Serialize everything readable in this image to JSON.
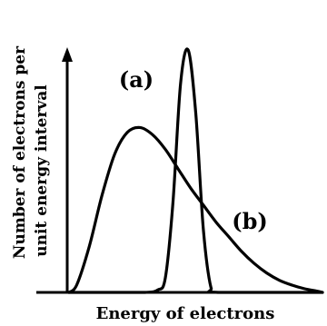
{
  "chart_data": {
    "type": "line",
    "title": "",
    "xlabel": "Energy of electrons",
    "ylabel_line1": "Number of electrons per",
    "ylabel_line2": "unit energy interval",
    "xlim": [
      0,
      1
    ],
    "ylim": [
      0,
      1
    ],
    "grid": false,
    "legend": "none",
    "series": [
      {
        "name": "(a)",
        "x": [
          0.0,
          0.1,
          0.2,
          0.3,
          0.35,
          0.38,
          0.41,
          0.44,
          0.47,
          0.5,
          0.53,
          0.56,
          0.59,
          1.0
        ],
        "y": [
          0.0,
          0.0,
          0.0,
          0.0,
          0.01,
          0.06,
          0.37,
          0.86,
          1.0,
          0.74,
          0.26,
          0.02,
          0.0,
          0.0
        ]
      },
      {
        "name": "(b)",
        "x": [
          0.0,
          0.03,
          0.08,
          0.13,
          0.18,
          0.23,
          0.28,
          0.33,
          0.38,
          0.43,
          0.48,
          0.53,
          0.58,
          0.63,
          0.68,
          0.73,
          0.78,
          0.83,
          0.88,
          0.93,
          0.98,
          1.0
        ],
        "y": [
          0.0,
          0.03,
          0.19,
          0.4,
          0.57,
          0.66,
          0.68,
          0.65,
          0.59,
          0.51,
          0.43,
          0.36,
          0.29,
          0.23,
          0.17,
          0.12,
          0.08,
          0.05,
          0.03,
          0.015,
          0.005,
          0.0
        ]
      }
    ]
  }
}
